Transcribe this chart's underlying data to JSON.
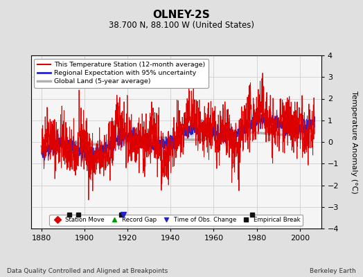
{
  "title": "OLNEY-2S",
  "subtitle": "38.700 N, 88.100 W (United States)",
  "ylabel": "Temperature Anomaly (°C)",
  "xlabel_note": "Data Quality Controlled and Aligned at Breakpoints",
  "credit": "Berkeley Earth",
  "xlim": [
    1875,
    2010
  ],
  "ylim": [
    -4,
    4
  ],
  "yticks": [
    -4,
    -3,
    -2,
    -1,
    0,
    1,
    2,
    3,
    4
  ],
  "xticks": [
    1880,
    1900,
    1920,
    1940,
    1960,
    1980,
    2000
  ],
  "bg_color": "#e0e0e0",
  "plot_bg_color": "#f5f5f5",
  "red_color": "#dd0000",
  "blue_color": "#2222cc",
  "blue_band_color": "#aaaaee",
  "gray_color": "#b0b0b0",
  "legend_items": [
    {
      "label": "This Temperature Station (12-month average)",
      "color": "#dd0000",
      "lw": 1.2
    },
    {
      "label": "Regional Expectation with 95% uncertainty",
      "color": "#2222cc",
      "lw": 1.5
    },
    {
      "label": "Global Land (5-year average)",
      "color": "#b0b0b0",
      "lw": 2.0
    }
  ],
  "marker_items": [
    {
      "label": "Station Move",
      "marker": "D",
      "color": "#dd0000"
    },
    {
      "label": "Record Gap",
      "marker": "^",
      "color": "#009900"
    },
    {
      "label": "Time of Obs. Change",
      "marker": "v",
      "color": "#2222cc"
    },
    {
      "label": "Empirical Break",
      "marker": "s",
      "color": "#111111"
    }
  ],
  "empirical_breaks": [
    1893,
    1897,
    1917,
    1978
  ],
  "time_obs_changes": [
    1918
  ],
  "station_moves": [],
  "record_gaps": [],
  "seed": 42
}
